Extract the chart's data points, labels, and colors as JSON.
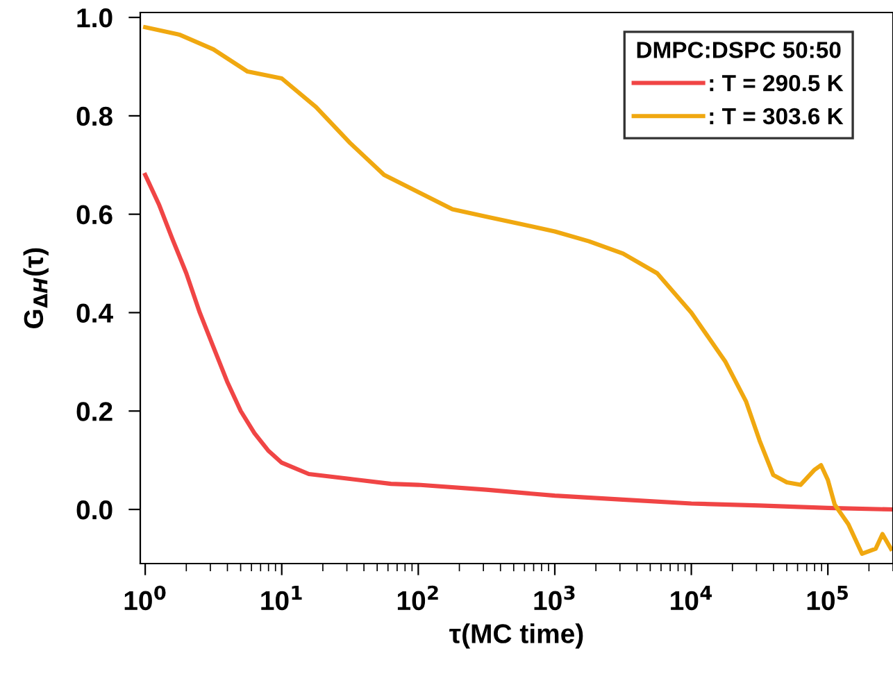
{
  "chart_data": {
    "type": "line",
    "xlabel": "τ(MC time)",
    "ylabel": "G$_{ΔH}$(τ)",
    "legend_title": "DMPC:DSPC 50:50",
    "legend": "top right",
    "log": "x",
    "grid": false,
    "marker": "none",
    "line_style": "solid",
    "xlim": [
      0.92,
      300000
    ],
    "ylim": [
      -0.11,
      1.01
    ],
    "xticks": [
      {
        "value": 1,
        "label": "10$^{0}$"
      },
      {
        "value": 10,
        "label": "10$^{1}$"
      },
      {
        "value": 100,
        "label": "10$^{2}$"
      },
      {
        "value": 1000,
        "label": "10$^{3}$"
      },
      {
        "value": 10000,
        "label": "10$^{4}$"
      },
      {
        "value": 100000,
        "label": "10$^{5}$"
      }
    ],
    "yticks": [
      {
        "value": 0,
        "label": "0.0"
      },
      {
        "value": 0.2,
        "label": "0.2"
      },
      {
        "value": 0.4,
        "label": "0.4"
      },
      {
        "value": 0.6,
        "label": "0.6"
      },
      {
        "value": 0.8,
        "label": "0.8"
      },
      {
        "value": 1,
        "label": "1.0"
      }
    ],
    "series": [
      {
        "name": ": T = 290.5 K",
        "color": "#f04545",
        "x": [
          1,
          1.26,
          1.58,
          2,
          2.51,
          3.16,
          3.98,
          5.01,
          6.31,
          7.94,
          10,
          15.8,
          31.6,
          63.1,
          100,
          316,
          1000,
          3162,
          10000,
          31623,
          100000,
          300000
        ],
        "values": [
          0.68,
          0.62,
          0.55,
          0.48,
          0.4,
          0.33,
          0.26,
          0.2,
          0.155,
          0.12,
          0.095,
          0.072,
          0.062,
          0.052,
          0.05,
          0.04,
          0.028,
          0.02,
          0.012,
          0.008,
          0.003,
          0.0
        ]
      },
      {
        "name": ": T = 303.6 K",
        "color": "#f0a810",
        "x": [
          1,
          1.78,
          3.16,
          5.62,
          10,
          17.8,
          31.6,
          56.2,
          100,
          178,
          316,
          562,
          1000,
          1778,
          3162,
          5623,
          10000,
          17783,
          25119,
          31623,
          39811,
          50119,
          63096,
          79433,
          89125,
          100000,
          112202,
          141254,
          177828,
          223872,
          251189,
          290000
        ],
        "values": [
          0.98,
          0.965,
          0.935,
          0.89,
          0.876,
          0.818,
          0.745,
          0.68,
          0.645,
          0.61,
          0.595,
          0.58,
          0.565,
          0.545,
          0.52,
          0.48,
          0.4,
          0.3,
          0.22,
          0.14,
          0.07,
          0.055,
          0.05,
          0.08,
          0.09,
          0.06,
          0.01,
          -0.03,
          -0.09,
          -0.08,
          -0.05,
          -0.08
        ]
      }
    ]
  }
}
